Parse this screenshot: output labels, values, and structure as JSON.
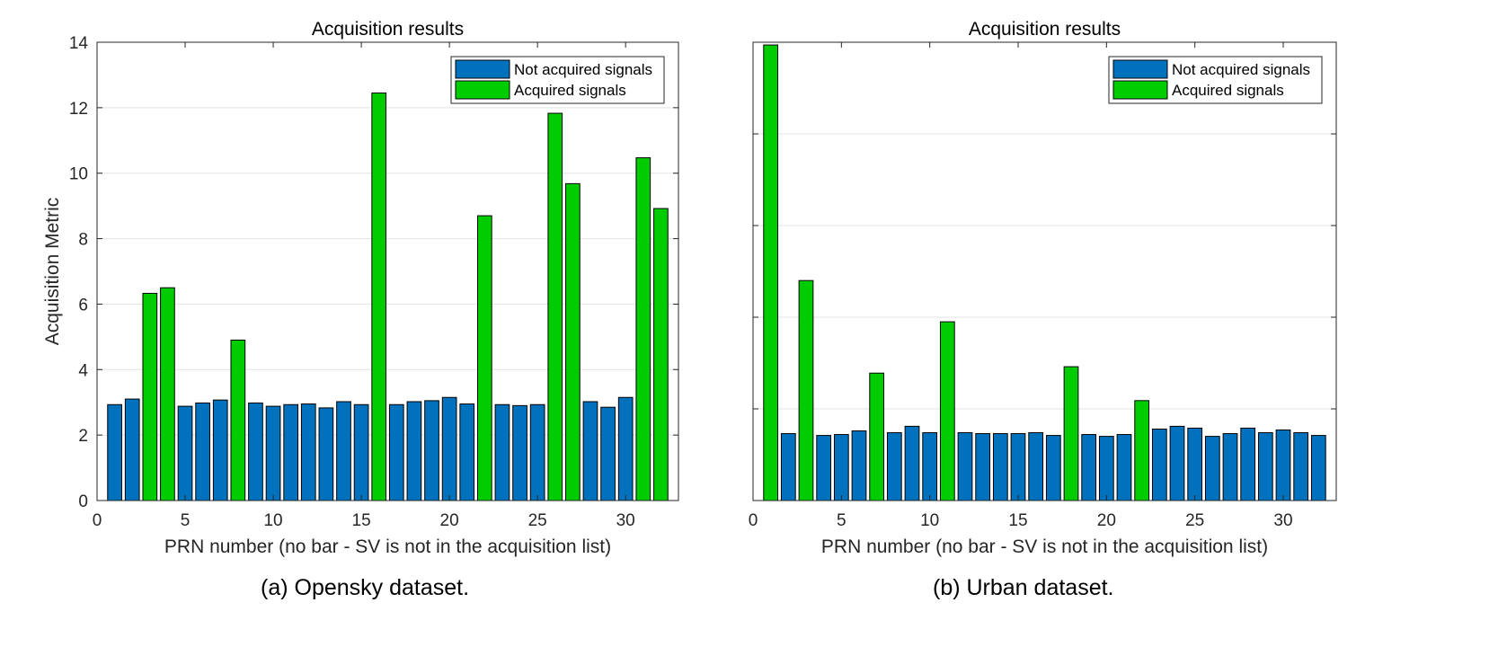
{
  "chart_data": [
    {
      "type": "bar",
      "title": "Acquisition results",
      "xlabel": "PRN number (no bar - SV is not in the acquisition list)",
      "ylabel": "Acquisition Metric",
      "caption": "(a) Opensky dataset.",
      "xlim": [
        0,
        33
      ],
      "ylim": [
        0,
        14
      ],
      "xticks": [
        0,
        5,
        10,
        15,
        20,
        25,
        30
      ],
      "yticks": [
        0,
        2,
        4,
        6,
        8,
        10,
        12,
        14
      ],
      "grid": "horizontal",
      "legend_position": "top-right",
      "legend": [
        {
          "label": "Not acquired signals",
          "color": "#0072BD"
        },
        {
          "label": "Acquired signals",
          "color": "#00CC00"
        }
      ],
      "x": [
        1,
        2,
        3,
        4,
        5,
        6,
        7,
        8,
        9,
        10,
        11,
        12,
        13,
        14,
        15,
        16,
        17,
        18,
        19,
        20,
        21,
        22,
        23,
        24,
        25,
        26,
        27,
        28,
        29,
        30,
        31,
        32
      ],
      "values": [
        2.93,
        3.1,
        6.33,
        6.5,
        2.88,
        2.98,
        3.07,
        4.9,
        2.98,
        2.88,
        2.93,
        2.95,
        2.83,
        3.02,
        2.93,
        12.45,
        2.93,
        3.02,
        3.05,
        3.15,
        2.95,
        8.7,
        2.93,
        2.9,
        2.93,
        11.83,
        9.68,
        3.02,
        2.85,
        3.15,
        10.47,
        8.92
      ],
      "acquired": [
        3,
        4,
        8,
        16,
        22,
        26,
        27,
        31,
        32
      ]
    },
    {
      "type": "bar",
      "title": "Acquisition results",
      "xlabel": "PRN number (no bar - SV is not in the acquisition list)",
      "ylabel": "Acquisition Metric",
      "caption": "(b) Urban dataset.",
      "xlim": [
        0,
        33
      ],
      "ylim": [
        0,
        25
      ],
      "xticks": [
        0,
        5,
        10,
        15,
        20,
        25,
        30
      ],
      "yticks": [
        0,
        5,
        10,
        15,
        20,
        25
      ],
      "grid": "horizontal",
      "legend_position": "top-right",
      "legend": [
        {
          "label": "Not acquired signals",
          "color": "#0072BD"
        },
        {
          "label": "Acquired signals",
          "color": "#00CC00"
        }
      ],
      "x": [
        1,
        2,
        3,
        4,
        5,
        6,
        7,
        8,
        9,
        10,
        11,
        12,
        13,
        14,
        15,
        16,
        17,
        18,
        19,
        20,
        21,
        22,
        23,
        24,
        25,
        26,
        27,
        28,
        29,
        30,
        31,
        32
      ],
      "values": [
        24.85,
        3.65,
        12.0,
        3.55,
        3.6,
        3.8,
        6.95,
        3.7,
        4.05,
        3.7,
        9.75,
        3.7,
        3.65,
        3.65,
        3.65,
        3.7,
        3.55,
        7.3,
        3.6,
        3.5,
        3.6,
        5.45,
        3.9,
        4.05,
        3.95,
        3.5,
        3.65,
        3.95,
        3.7,
        3.85,
        3.7,
        3.55
      ],
      "acquired": [
        1,
        3,
        7,
        11,
        18,
        22
      ]
    }
  ]
}
